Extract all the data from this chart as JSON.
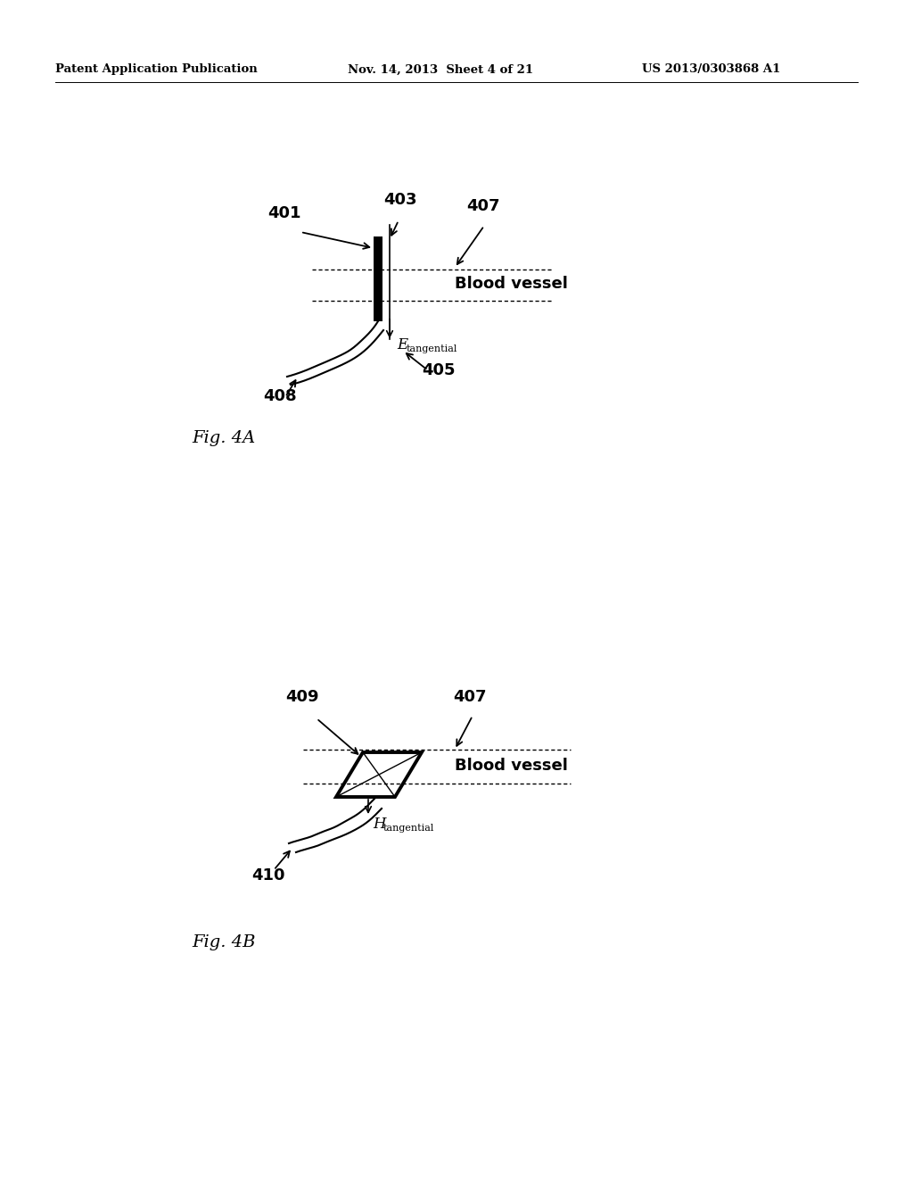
{
  "bg_color": "#ffffff",
  "header_left": "Patent Application Publication",
  "header_mid": "Nov. 14, 2013  Sheet 4 of 21",
  "header_right": "US 2013/0303868 A1",
  "fig4a_label": "Fig. 4A",
  "fig4b_label": "Fig. 4B",
  "blood_vessel_label": "Blood vessel",
  "e_tangential_label": "E",
  "e_tangential_sub": "tangential",
  "h_tangential_label": "H",
  "h_tangential_sub": "tangential"
}
